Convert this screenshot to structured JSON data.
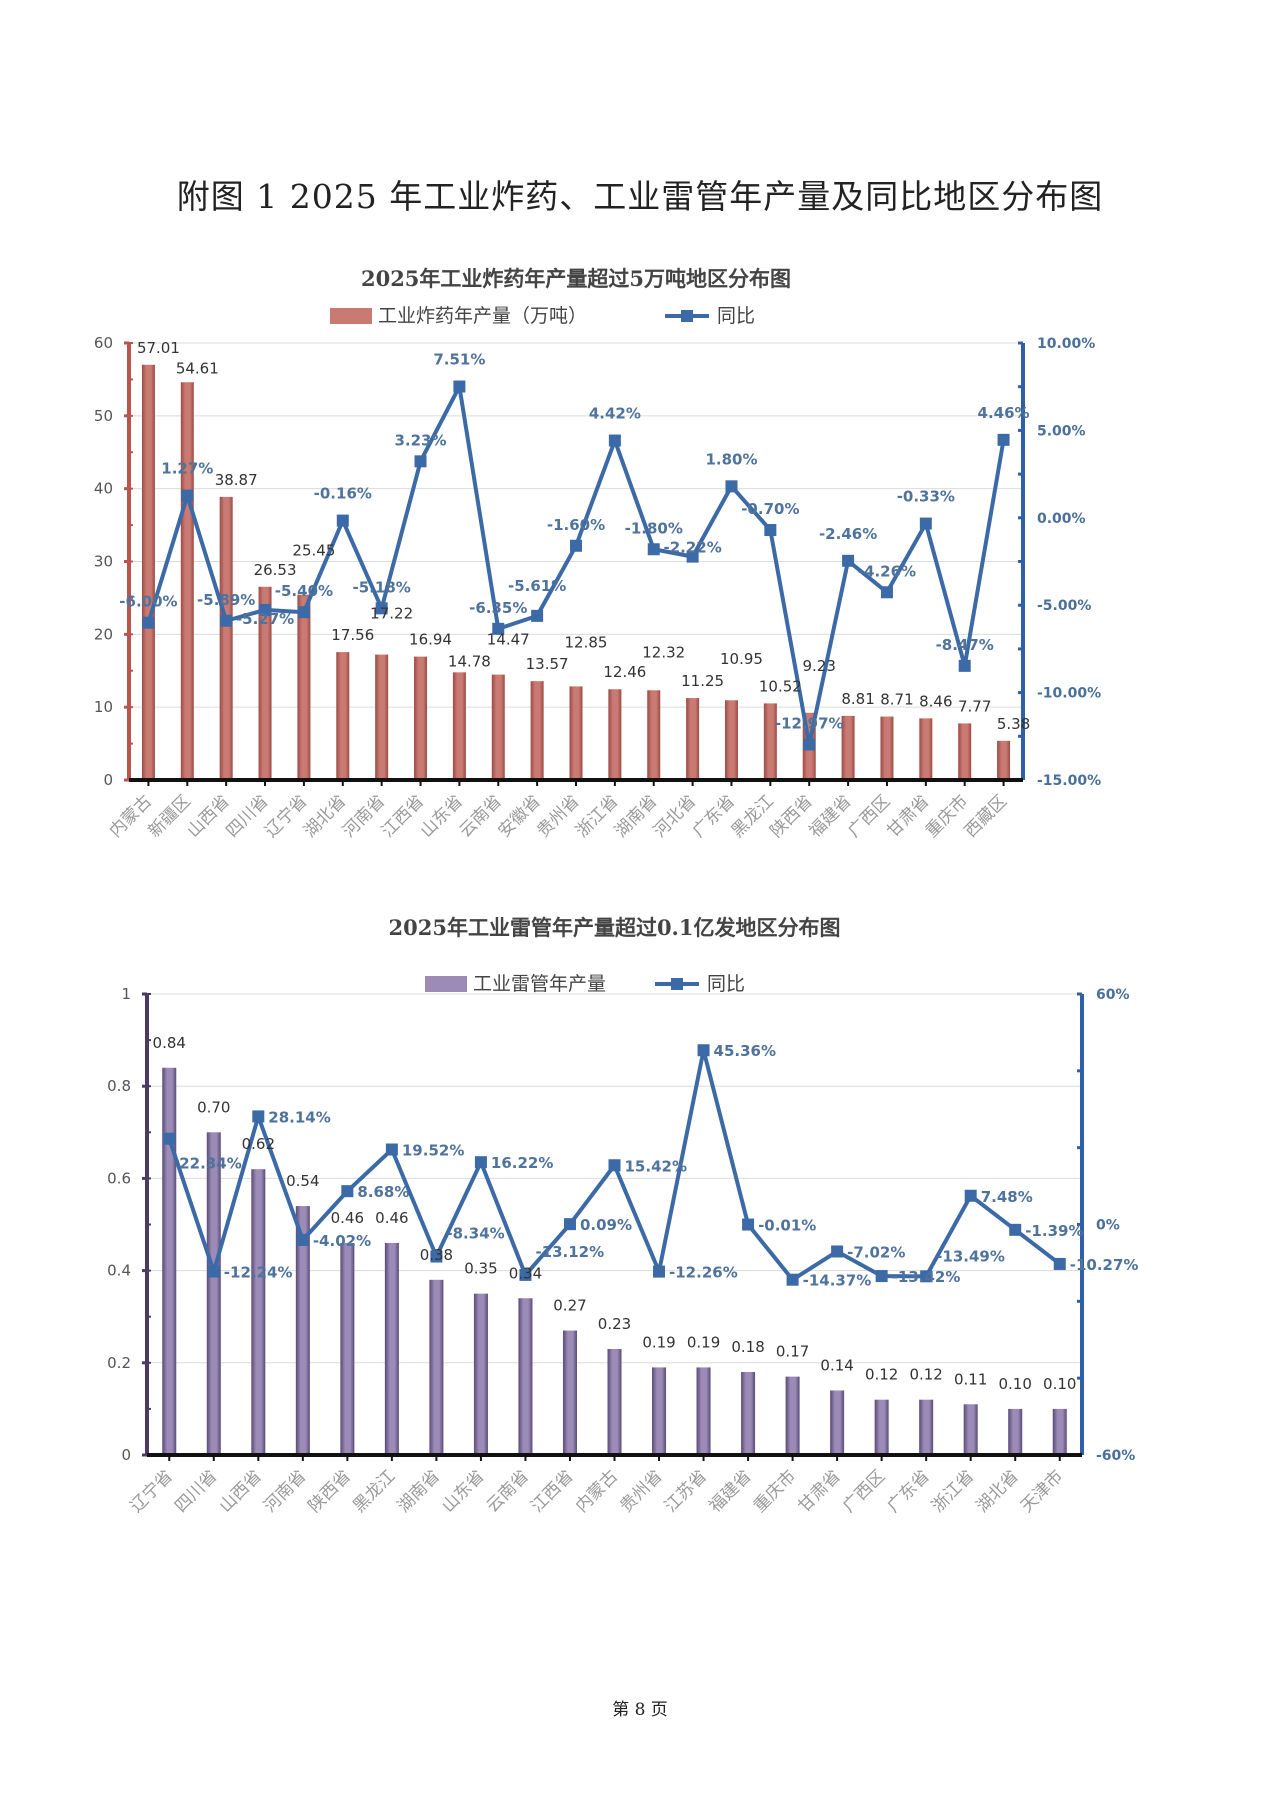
{
  "page_title": "附图 1 2025 年工业炸药、工业雷管年产量及同比地区分布图",
  "footer": "第 8 页",
  "colors": {
    "bar1": "#c97b73",
    "bar2": "#9b8bb6",
    "line": "#3b6aa6",
    "axis_right": "#2f5fa8"
  },
  "chart_data": [
    {
      "type": "bar+line",
      "title": "2025年工业炸药年产量超过5万吨地区分布图",
      "legend": [
        "工业炸药年产量（万吨）",
        "同比"
      ],
      "legend_position": "top",
      "grid": true,
      "categories": [
        "内蒙古",
        "新疆区",
        "山西省",
        "四川省",
        "辽宁省",
        "湖北省",
        "河南省",
        "江西省",
        "山东省",
        "云南省",
        "安徽省",
        "贵州省",
        "浙江省",
        "湖南省",
        "河北省",
        "广东省",
        "黑龙江",
        "陕西省",
        "福建省",
        "广西区",
        "甘肃省",
        "重庆市",
        "西藏区"
      ],
      "series": [
        {
          "name": "工业炸药年产量（万吨）",
          "type": "bar",
          "axis": "left",
          "values": [
            57.01,
            54.61,
            38.87,
            26.53,
            25.45,
            17.56,
            17.22,
            16.94,
            14.78,
            14.47,
            13.57,
            12.85,
            12.46,
            12.32,
            11.25,
            10.95,
            10.52,
            9.23,
            8.81,
            8.71,
            8.46,
            7.77,
            5.38
          ],
          "labels": [
            "57.01",
            "54.61",
            "38.87",
            "26.53",
            "25.45",
            "17.56",
            "17.22",
            "16.94",
            "14.78",
            "14.47",
            "13.57",
            "12.85",
            "12.46",
            "12.32",
            "11.25",
            "10.95",
            "10.52",
            "9.23",
            "8.81",
            "8.71",
            "8.46",
            "7.77",
            "5.38"
          ]
        },
        {
          "name": "同比",
          "type": "line",
          "axis": "right",
          "values": [
            -6.0,
            1.27,
            -5.89,
            -5.27,
            -5.4,
            -0.16,
            -5.18,
            3.23,
            7.51,
            -6.35,
            -5.61,
            -1.6,
            4.42,
            -1.8,
            -2.22,
            1.8,
            -0.7,
            -12.97,
            -2.46,
            -4.26,
            -0.33,
            -8.47,
            4.46
          ],
          "labels": [
            "-6.00%",
            "1.27%",
            "-5.89%",
            "-5.27%",
            "-5.40%",
            "-0.16%",
            "-5.18%",
            "3.23%",
            "7.51%",
            "-6.35%",
            "-5.61%",
            "-1.60%",
            "4.42%",
            "-1.80%",
            "-2.22%",
            "1.80%",
            "-0.70%",
            "-12.97%",
            "-2.46%",
            "-4.26%",
            "-0.33%",
            "-8.47%",
            "4.46%"
          ]
        }
      ],
      "y_left": {
        "range": [
          0,
          60
        ],
        "ticks": [
          "0",
          "10",
          "20",
          "30",
          "40",
          "50",
          "60"
        ]
      },
      "y_right": {
        "range": [
          -15,
          10
        ],
        "ticks": [
          "-15.00%",
          "-10.00%",
          "-5.00%",
          "0.00%",
          "5.00%",
          "10.00%"
        ]
      }
    },
    {
      "type": "bar+line",
      "title": "2025年工业雷管年产量超过0.1亿发地区分布图",
      "legend": [
        "工业雷管年产量",
        "同比"
      ],
      "legend_position": "top",
      "grid": true,
      "categories": [
        "辽宁省",
        "四川省",
        "山西省",
        "河南省",
        "陕西省",
        "黑龙江",
        "湖南省",
        "山东省",
        "云南省",
        "江西省",
        "内蒙古",
        "贵州省",
        "江苏省",
        "福建省",
        "重庆市",
        "甘肃省",
        "广西区",
        "广东省",
        "浙江省",
        "湖北省",
        "天津市"
      ],
      "series": [
        {
          "name": "工业雷管年产量",
          "type": "bar",
          "axis": "left",
          "values": [
            0.84,
            0.7,
            0.62,
            0.54,
            0.46,
            0.46,
            0.38,
            0.35,
            0.34,
            0.27,
            0.23,
            0.19,
            0.19,
            0.18,
            0.17,
            0.14,
            0.12,
            0.12,
            0.11,
            0.1,
            0.1
          ],
          "labels": [
            "0.84",
            "0.70",
            "0.62",
            "0.54",
            "0.46",
            "0.46",
            "0.38",
            "0.35",
            "0.34",
            "0.27",
            "0.23",
            "0.19",
            "0.19",
            "0.18",
            "0.17",
            "0.14",
            "0.12",
            "0.12",
            "0.11",
            "0.10",
            "0.10"
          ]
        },
        {
          "name": "同比",
          "type": "line",
          "axis": "right",
          "values": [
            22.34,
            -12.24,
            28.14,
            -4.02,
            8.68,
            19.52,
            -8.34,
            16.22,
            -13.12,
            0.09,
            15.42,
            -12.26,
            45.36,
            -0.01,
            -14.37,
            -7.02,
            -13.42,
            -13.49,
            7.48,
            -1.39,
            -10.27
          ],
          "labels": [
            "22.34%",
            "-12.24%",
            "28.14%",
            "-4.02%",
            "8.68%",
            "19.52%",
            "-8.34%",
            "16.22%",
            "-13.12%",
            "0.09%",
            "15.42%",
            "-12.26%",
            "45.36%",
            "-0.01%",
            "-14.37%",
            "-7.02%",
            "-13.42%",
            "-13.49%",
            "7.48%",
            "-1.39%",
            "-10.27%"
          ]
        }
      ],
      "y_left": {
        "range": [
          0,
          1
        ],
        "ticks": [
          "0",
          "0.2",
          "0.4",
          "0.6",
          "0.8",
          "1"
        ]
      },
      "y_right": {
        "range": [
          -60,
          60
        ],
        "ticks": [
          "-60%",
          "0%",
          "60%"
        ]
      }
    }
  ]
}
